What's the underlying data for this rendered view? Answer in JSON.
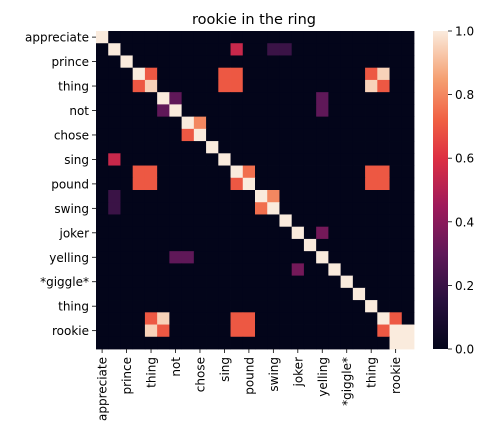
{
  "chart_data": {
    "type": "heatmap",
    "title": "rookie in the ring",
    "xlabel": "",
    "ylabel": "",
    "x_labels": [
      "appreciate",
      "",
      "prince",
      "",
      "thing",
      "",
      "not",
      "",
      "chose",
      "",
      "sing",
      "",
      "pound",
      "",
      "swing",
      "",
      "joker",
      "",
      "yelling",
      "",
      "*giggle*",
      "",
      "thing",
      "",
      "rookie",
      ""
    ],
    "y_labels": [
      "appreciate",
      "",
      "prince",
      "",
      "thing",
      "",
      "not",
      "",
      "chose",
      "",
      "sing",
      "",
      "pound",
      "",
      "swing",
      "",
      "joker",
      "",
      "yelling",
      "",
      "*giggle*",
      "",
      "thing",
      "",
      "rookie",
      ""
    ],
    "colorbar": {
      "min": 0.0,
      "max": 1.0,
      "ticks": [
        "0.0",
        "0.2",
        "0.4",
        "0.6",
        "0.8",
        "1.0"
      ],
      "colormap": "rocket"
    },
    "values": [
      [
        1,
        0,
        0,
        0,
        0,
        0,
        0,
        0,
        0,
        0,
        0,
        0,
        0,
        0,
        0,
        0,
        0,
        0,
        0,
        0,
        0,
        0,
        0,
        0,
        0,
        0
      ],
      [
        0,
        1,
        0,
        0,
        0,
        0,
        0,
        0,
        0,
        0,
        0,
        0.55,
        0,
        0,
        0.2,
        0.2,
        0,
        0,
        0,
        0,
        0,
        0,
        0,
        0,
        0,
        0
      ],
      [
        0,
        0,
        1,
        0,
        0,
        0,
        0,
        0,
        0,
        0,
        0,
        0,
        0,
        0,
        0,
        0,
        0,
        0,
        0,
        0,
        0,
        0,
        0,
        0,
        0,
        0
      ],
      [
        0,
        0,
        0,
        1,
        0.7,
        0,
        0,
        0,
        0,
        0,
        0.7,
        0.7,
        0,
        0,
        0,
        0,
        0,
        0,
        0,
        0,
        0,
        0,
        0.7,
        0.95,
        0,
        0
      ],
      [
        0,
        0,
        0,
        0.7,
        0.95,
        0,
        0,
        0,
        0,
        0,
        0.7,
        0.7,
        0,
        0,
        0,
        0,
        0,
        0,
        0,
        0,
        0,
        0,
        0.95,
        0.7,
        0,
        0
      ],
      [
        0,
        0,
        0,
        0,
        0,
        1,
        0.3,
        0,
        0,
        0,
        0,
        0,
        0,
        0,
        0,
        0,
        0,
        0,
        0.3,
        0,
        0,
        0,
        0,
        0,
        0,
        0
      ],
      [
        0,
        0,
        0,
        0,
        0,
        0.3,
        1,
        0,
        0,
        0,
        0,
        0,
        0,
        0,
        0,
        0,
        0,
        0,
        0.3,
        0,
        0,
        0,
        0,
        0,
        0,
        0
      ],
      [
        0,
        0,
        0,
        0,
        0,
        0,
        0,
        1,
        0.8,
        0,
        0,
        0,
        0,
        0,
        0,
        0,
        0,
        0,
        0,
        0,
        0,
        0,
        0,
        0,
        0,
        0
      ],
      [
        0,
        0,
        0,
        0,
        0,
        0,
        0,
        0.7,
        1,
        0,
        0,
        0,
        0,
        0,
        0,
        0,
        0,
        0,
        0,
        0,
        0,
        0,
        0,
        0,
        0,
        0
      ],
      [
        0,
        0,
        0,
        0,
        0,
        0,
        0,
        0,
        0,
        1,
        0,
        0,
        0,
        0,
        0,
        0,
        0,
        0,
        0,
        0,
        0,
        0,
        0,
        0,
        0,
        0
      ],
      [
        0,
        0.55,
        0,
        0,
        0,
        0,
        0,
        0,
        0,
        0,
        1,
        0,
        0,
        0,
        0,
        0,
        0,
        0,
        0,
        0,
        0,
        0,
        0,
        0,
        0,
        0
      ],
      [
        0,
        0,
        0,
        0.7,
        0.7,
        0,
        0,
        0,
        0,
        0,
        0,
        1,
        0.75,
        0,
        0,
        0,
        0,
        0,
        0,
        0,
        0,
        0,
        0.7,
        0.7,
        0,
        0
      ],
      [
        0,
        0,
        0,
        0.7,
        0.7,
        0,
        0,
        0,
        0,
        0,
        0,
        0.7,
        1,
        0,
        0,
        0,
        0,
        0,
        0,
        0,
        0,
        0,
        0.7,
        0.7,
        0,
        0
      ],
      [
        0,
        0.2,
        0,
        0,
        0,
        0,
        0,
        0,
        0,
        0,
        0,
        0,
        0,
        1,
        0.8,
        0,
        0,
        0,
        0,
        0,
        0,
        0,
        0,
        0,
        0,
        0
      ],
      [
        0,
        0.2,
        0,
        0,
        0,
        0,
        0,
        0,
        0,
        0,
        0,
        0,
        0,
        0.75,
        1,
        0,
        0,
        0,
        0,
        0,
        0,
        0,
        0,
        0,
        0,
        0
      ],
      [
        0,
        0,
        0,
        0,
        0,
        0,
        0,
        0,
        0,
        0,
        0,
        0,
        0,
        0,
        0,
        1,
        0,
        0,
        0,
        0,
        0,
        0,
        0,
        0,
        0,
        0
      ],
      [
        0,
        0,
        0,
        0,
        0,
        0,
        0,
        0,
        0,
        0,
        0,
        0,
        0,
        0,
        0,
        0,
        1,
        0,
        0.35,
        0,
        0,
        0,
        0,
        0,
        0,
        0
      ],
      [
        0,
        0,
        0,
        0,
        0,
        0,
        0,
        0,
        0,
        0,
        0,
        0,
        0,
        0,
        0,
        0,
        0,
        1,
        0,
        0,
        0,
        0,
        0,
        0,
        0,
        0
      ],
      [
        0,
        0,
        0,
        0,
        0,
        0,
        0.3,
        0.3,
        0,
        0,
        0,
        0,
        0,
        0,
        0,
        0,
        0,
        0,
        1,
        0,
        0,
        0,
        0,
        0,
        0,
        0
      ],
      [
        0,
        0,
        0,
        0,
        0,
        0,
        0,
        0,
        0,
        0,
        0,
        0,
        0,
        0,
        0,
        0,
        0.35,
        0,
        0,
        1,
        0,
        0,
        0,
        0,
        0,
        0
      ],
      [
        0,
        0,
        0,
        0,
        0,
        0,
        0,
        0,
        0,
        0,
        0,
        0,
        0,
        0,
        0,
        0,
        0,
        0,
        0,
        0,
        1,
        0,
        0,
        0,
        0,
        0
      ],
      [
        0,
        0,
        0,
        0,
        0,
        0,
        0,
        0,
        0,
        0,
        0,
        0,
        0,
        0,
        0,
        0,
        0,
        0,
        0,
        0,
        0,
        1,
        0,
        0,
        0,
        0
      ],
      [
        0,
        0,
        0,
        0,
        0,
        0,
        0,
        0,
        0,
        0,
        0,
        0,
        0,
        0,
        0,
        0,
        0,
        0,
        0,
        0,
        0,
        0,
        1,
        0,
        0,
        0
      ],
      [
        0,
        0,
        0,
        0,
        0.7,
        0.95,
        0,
        0,
        0,
        0,
        0,
        0.7,
        0.7,
        0,
        0,
        0,
        0,
        0,
        0,
        0,
        0,
        0,
        0,
        1,
        0.7,
        0
      ],
      [
        0,
        0,
        0,
        0,
        0.95,
        0.7,
        0,
        0,
        0,
        0,
        0,
        0.7,
        0.7,
        0,
        0,
        0,
        0,
        0,
        0,
        0,
        0,
        0,
        0,
        0.7,
        1,
        1
      ],
      [
        0,
        0,
        0,
        0,
        0,
        0,
        0,
        0,
        0,
        0,
        0,
        0,
        0,
        0,
        0,
        0,
        0,
        0,
        0,
        0,
        0,
        0,
        0,
        0,
        1,
        1
      ]
    ]
  }
}
